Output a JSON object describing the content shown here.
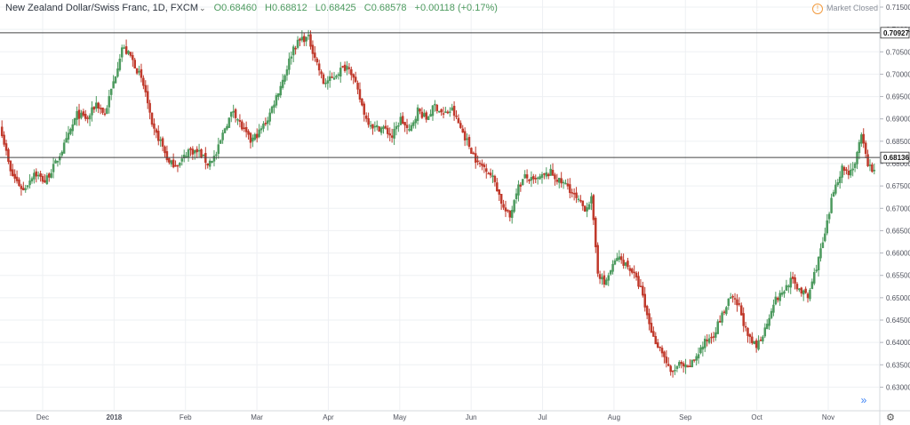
{
  "header": {
    "symbol": "New Zealand Dollar/Swiss Franc, 1D, FXCM",
    "caret": "⌄",
    "open": "O0.68460",
    "high": "H0.68812",
    "low": "L0.68425",
    "close": "C0.68578",
    "change": "+0.00118 (+0.17%)"
  },
  "market_status": {
    "icon": "warning-icon",
    "text": "Market Closed"
  },
  "colors": {
    "up": "#4c9a5e",
    "down": "#c0392b",
    "grid": "#eef0f3",
    "line": "#444444"
  },
  "chart_data": {
    "type": "candlestick",
    "title": "New Zealand Dollar/Swiss Franc, 1D, FXCM",
    "ylim": [
      0.6275,
      0.715
    ],
    "yticks": [
      "0.71500",
      "0.71000",
      "0.70500",
      "0.70000",
      "0.69500",
      "0.69000",
      "0.68500",
      "0.68000",
      "0.67500",
      "0.67000",
      "0.66500",
      "0.66000",
      "0.65500",
      "0.65000",
      "0.64500",
      "0.64000",
      "0.63500",
      "0.63000"
    ],
    "xticks": [
      {
        "label": "Dec",
        "bold": false
      },
      {
        "label": "2018",
        "bold": true
      },
      {
        "label": "Feb",
        "bold": false
      },
      {
        "label": "Mar",
        "bold": false
      },
      {
        "label": "Apr",
        "bold": false
      },
      {
        "label": "May",
        "bold": false
      },
      {
        "label": "Jun",
        "bold": false
      },
      {
        "label": "Jul",
        "bold": false
      },
      {
        "label": "Aug",
        "bold": false
      },
      {
        "label": "Sep",
        "bold": false
      },
      {
        "label": "Oct",
        "bold": false
      },
      {
        "label": "Nov",
        "bold": false
      }
    ],
    "horizontal_lines": [
      {
        "value": 0.70927,
        "label": "0.70927"
      },
      {
        "value": 0.68136,
        "label": "0.68136"
      }
    ],
    "anchors": [
      [
        0,
        0.687
      ],
      [
        4,
        0.678
      ],
      [
        10,
        0.674
      ],
      [
        15,
        0.678
      ],
      [
        20,
        0.676
      ],
      [
        25,
        0.68
      ],
      [
        30,
        0.685
      ],
      [
        35,
        0.691
      ],
      [
        40,
        0.69
      ],
      [
        44,
        0.6935
      ],
      [
        48,
        0.691
      ],
      [
        53,
        0.7
      ],
      [
        56,
        0.706
      ],
      [
        60,
        0.704
      ],
      [
        64,
        0.7
      ],
      [
        67,
        0.696
      ],
      [
        70,
        0.688
      ],
      [
        74,
        0.685
      ],
      [
        78,
        0.68
      ],
      [
        83,
        0.68
      ],
      [
        87,
        0.683
      ],
      [
        92,
        0.6825
      ],
      [
        96,
        0.68
      ],
      [
        100,
        0.682
      ],
      [
        104,
        0.688
      ],
      [
        108,
        0.692
      ],
      [
        112,
        0.688
      ],
      [
        116,
        0.685
      ],
      [
        120,
        0.687
      ],
      [
        124,
        0.69
      ],
      [
        128,
        0.695
      ],
      [
        132,
        0.7
      ],
      [
        136,
        0.706
      ],
      [
        140,
        0.708
      ],
      [
        143,
        0.708
      ],
      [
        146,
        0.704
      ],
      [
        150,
        0.698
      ],
      [
        154,
        0.699
      ],
      [
        158,
        0.701
      ],
      [
        162,
        0.702
      ],
      [
        166,
        0.696
      ],
      [
        170,
        0.69
      ],
      [
        174,
        0.688
      ],
      [
        178,
        0.688
      ],
      [
        182,
        0.686
      ],
      [
        186,
        0.69
      ],
      [
        190,
        0.687
      ],
      [
        194,
        0.692
      ],
      [
        198,
        0.69
      ],
      [
        202,
        0.693
      ],
      [
        206,
        0.691
      ],
      [
        210,
        0.692
      ],
      [
        214,
        0.688
      ],
      [
        218,
        0.684
      ],
      [
        222,
        0.68
      ],
      [
        226,
        0.679
      ],
      [
        230,
        0.676
      ],
      [
        234,
        0.67
      ],
      [
        237,
        0.668
      ],
      [
        240,
        0.674
      ],
      [
        244,
        0.677
      ],
      [
        248,
        0.676
      ],
      [
        252,
        0.677
      ],
      [
        256,
        0.678
      ],
      [
        260,
        0.676
      ],
      [
        264,
        0.675
      ],
      [
        268,
        0.672
      ],
      [
        272,
        0.67
      ],
      [
        275,
        0.672
      ],
      [
        278,
        0.656
      ],
      [
        281,
        0.653
      ],
      [
        284,
        0.656
      ],
      [
        287,
        0.659
      ],
      [
        290,
        0.658
      ],
      [
        294,
        0.656
      ],
      [
        298,
        0.652
      ],
      [
        301,
        0.646
      ],
      [
        304,
        0.641
      ],
      [
        308,
        0.638
      ],
      [
        312,
        0.633
      ],
      [
        316,
        0.635
      ],
      [
        320,
        0.634
      ],
      [
        324,
        0.637
      ],
      [
        328,
        0.64
      ],
      [
        332,
        0.642
      ],
      [
        336,
        0.646
      ],
      [
        340,
        0.65
      ],
      [
        344,
        0.648
      ],
      [
        348,
        0.641
      ],
      [
        352,
        0.639
      ],
      [
        356,
        0.643
      ],
      [
        360,
        0.649
      ],
      [
        364,
        0.651
      ],
      [
        368,
        0.654
      ],
      [
        372,
        0.652
      ],
      [
        376,
        0.65
      ],
      [
        380,
        0.657
      ],
      [
        384,
        0.664
      ],
      [
        388,
        0.674
      ],
      [
        392,
        0.679
      ],
      [
        395,
        0.678
      ],
      [
        398,
        0.68
      ],
      [
        401,
        0.686
      ],
      [
        404,
        0.68
      ],
      [
        407,
        0.678
      ]
    ]
  },
  "controls": {
    "scroll_icon": "»",
    "settings_icon": "⚙"
  }
}
